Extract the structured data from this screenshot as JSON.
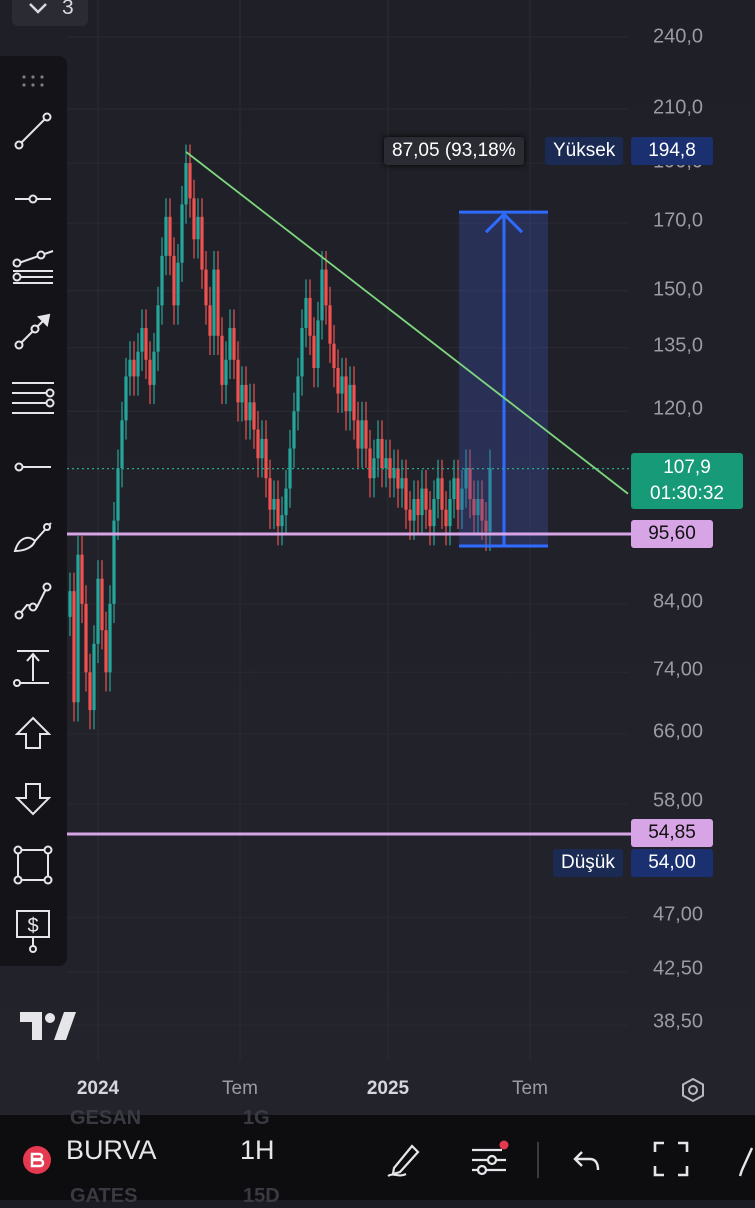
{
  "interval_stepper": {
    "value": "3"
  },
  "price_axis": [
    "240,0",
    "210,0",
    "190,0",
    "170,0",
    "150,0",
    "135,0",
    "120,0",
    "84,00",
    "74,00",
    "66,00",
    "58,00",
    "47,00",
    "42,50",
    "38,50"
  ],
  "time_axis": {
    "year1": "2024",
    "m1": "Tem",
    "year2": "2025",
    "m2": "Tem"
  },
  "high_tag": {
    "label": "Yüksek",
    "value": "194,8"
  },
  "low_tag": {
    "label": "Düşük",
    "value": "54,00"
  },
  "measure_tooltip": "87,05 (93,18%",
  "current_price": {
    "value": "107,9",
    "countdown": "01:30:32"
  },
  "lines": {
    "upper": "95,60",
    "lower": "54,85"
  },
  "colors": {
    "up": "#26a69a",
    "down": "#ef5350",
    "level": "#d7a4e6",
    "measure": "#2f6bff",
    "trend": "#7ed77e",
    "accent": "#e53950"
  },
  "bottom_bar": {
    "symbol": "BURVA",
    "timeframe": "1H",
    "faded_top": [
      "GESAN",
      "1G"
    ],
    "faded_bottom": [
      "GATES",
      "15D"
    ]
  },
  "toolbar_icons": [
    "drag-handle-icon",
    "trend-line-icon",
    "horizontal-ray-icon",
    "pitchfork-icon",
    "arrow-line-icon",
    "fib-retracement-icon",
    "horizontal-line-icon",
    "brush-icon",
    "path-icon",
    "measure-icon",
    "arrow-up-icon",
    "arrow-down-icon",
    "rectangle-icon",
    "price-label-icon"
  ],
  "chart_data": {
    "type": "candlestick",
    "symbol": "BURVA",
    "y_scale": "log",
    "y_ticks": [
      240,
      210,
      190,
      170,
      150,
      135,
      120,
      84,
      74,
      66,
      58,
      47,
      42.5,
      38.5
    ],
    "x_ticks": [
      "2024",
      "Tem",
      "2025",
      "Tem"
    ],
    "horizontal_levels": [
      95.6,
      54.85
    ],
    "last_price": 107.9,
    "range_high": 194.8,
    "range_low": 54.0,
    "trendline": {
      "from_price": 194,
      "to_price": 103
    }
  }
}
